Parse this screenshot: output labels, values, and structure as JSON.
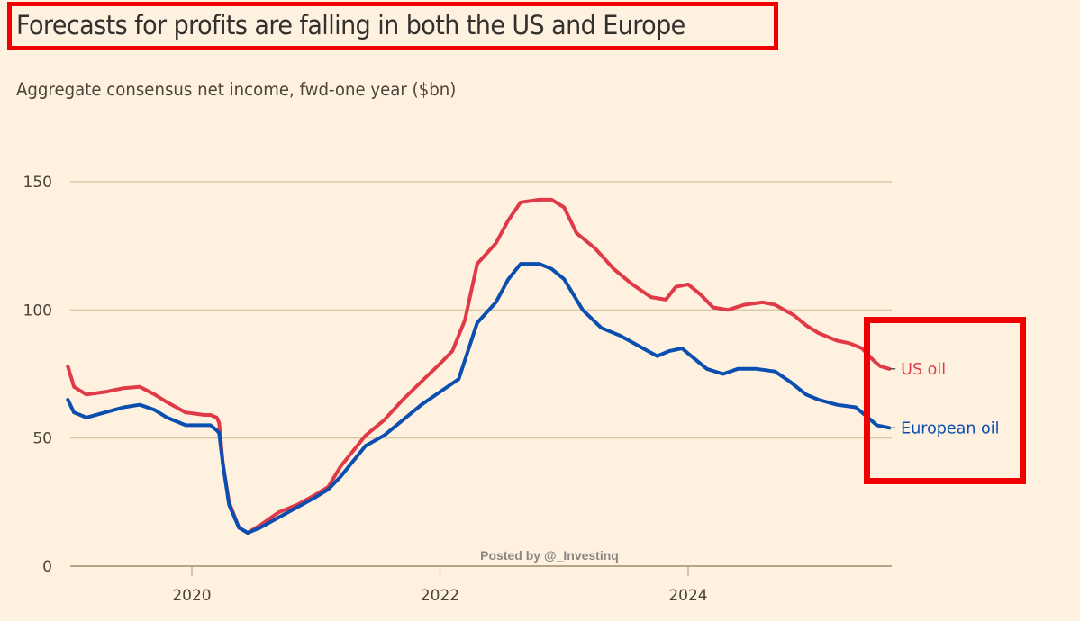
{
  "header": {
    "title": "Forecasts for profits are falling in both the US and Europe",
    "subtitle": "Aggregate consensus net income, fwd-one year ($bn)"
  },
  "watermark": "Posted by @_Investinq",
  "colors": {
    "background": "#fff1df",
    "us_oil": "#e03a48",
    "european_oil": "#0a4fb0",
    "gridline": "#d9c8a8",
    "highlight_box": "#f00000"
  },
  "chart_data": {
    "type": "line",
    "title": "Forecasts for profits are falling in both the US and Europe",
    "subtitle": "Aggregate consensus net income, fwd-one year ($bn)",
    "xlabel": "",
    "ylabel": "",
    "xlim": [
      2019.0,
      2025.65
    ],
    "ylim": [
      0,
      150
    ],
    "x_ticks": [
      2020,
      2022,
      2024
    ],
    "x_tick_labels": [
      "2020",
      "2022",
      "2024"
    ],
    "y_ticks": [
      0,
      50,
      100,
      150
    ],
    "y_tick_labels": [
      "0",
      "50",
      "100",
      "150"
    ],
    "grid": true,
    "legend": "direct labels at right end of lines",
    "series": [
      {
        "name": "US oil",
        "color": "#e03a48",
        "points": [
          [
            2019.0,
            78
          ],
          [
            2019.05,
            70
          ],
          [
            2019.15,
            67
          ],
          [
            2019.3,
            68
          ],
          [
            2019.45,
            69.5
          ],
          [
            2019.58,
            70
          ],
          [
            2019.7,
            67
          ],
          [
            2019.8,
            64
          ],
          [
            2019.95,
            60
          ],
          [
            2020.1,
            59
          ],
          [
            2020.15,
            59
          ],
          [
            2020.2,
            58
          ],
          [
            2020.22,
            56
          ],
          [
            2020.25,
            40
          ],
          [
            2020.3,
            25
          ],
          [
            2020.38,
            15
          ],
          [
            2020.45,
            13
          ],
          [
            2020.55,
            16
          ],
          [
            2020.7,
            21
          ],
          [
            2020.85,
            24
          ],
          [
            2021.0,
            28
          ],
          [
            2021.1,
            31
          ],
          [
            2021.2,
            39
          ],
          [
            2021.3,
            45
          ],
          [
            2021.4,
            51
          ],
          [
            2021.55,
            57
          ],
          [
            2021.7,
            65
          ],
          [
            2021.85,
            72
          ],
          [
            2022.0,
            79
          ],
          [
            2022.1,
            84
          ],
          [
            2022.2,
            96
          ],
          [
            2022.3,
            118
          ],
          [
            2022.45,
            126
          ],
          [
            2022.55,
            135
          ],
          [
            2022.65,
            142
          ],
          [
            2022.8,
            143
          ],
          [
            2022.9,
            143
          ],
          [
            2023.0,
            140
          ],
          [
            2023.1,
            130
          ],
          [
            2023.25,
            124
          ],
          [
            2023.4,
            116
          ],
          [
            2023.55,
            110
          ],
          [
            2023.7,
            105
          ],
          [
            2023.82,
            104
          ],
          [
            2023.9,
            109
          ],
          [
            2024.0,
            110
          ],
          [
            2024.1,
            106
          ],
          [
            2024.2,
            101
          ],
          [
            2024.32,
            100
          ],
          [
            2024.45,
            102
          ],
          [
            2024.6,
            103
          ],
          [
            2024.7,
            102
          ],
          [
            2024.85,
            98
          ],
          [
            2024.95,
            94
          ],
          [
            2025.05,
            91
          ],
          [
            2025.2,
            88
          ],
          [
            2025.3,
            87
          ],
          [
            2025.4,
            85
          ],
          [
            2025.5,
            80
          ],
          [
            2025.55,
            78
          ],
          [
            2025.62,
            77
          ]
        ]
      },
      {
        "name": "European oil",
        "color": "#0a4fb0",
        "points": [
          [
            2019.0,
            65
          ],
          [
            2019.05,
            60
          ],
          [
            2019.15,
            58
          ],
          [
            2019.3,
            60
          ],
          [
            2019.45,
            62
          ],
          [
            2019.58,
            63
          ],
          [
            2019.7,
            61
          ],
          [
            2019.8,
            58
          ],
          [
            2019.95,
            55
          ],
          [
            2020.1,
            55
          ],
          [
            2020.15,
            55
          ],
          [
            2020.2,
            53
          ],
          [
            2020.22,
            52
          ],
          [
            2020.25,
            40
          ],
          [
            2020.3,
            24
          ],
          [
            2020.38,
            15
          ],
          [
            2020.45,
            13
          ],
          [
            2020.55,
            15
          ],
          [
            2020.7,
            19
          ],
          [
            2020.85,
            23
          ],
          [
            2021.0,
            27
          ],
          [
            2021.1,
            30
          ],
          [
            2021.2,
            35
          ],
          [
            2021.3,
            41
          ],
          [
            2021.4,
            47
          ],
          [
            2021.55,
            51
          ],
          [
            2021.7,
            57
          ],
          [
            2021.85,
            63
          ],
          [
            2022.0,
            68
          ],
          [
            2022.15,
            73
          ],
          [
            2022.3,
            95
          ],
          [
            2022.45,
            103
          ],
          [
            2022.55,
            112
          ],
          [
            2022.65,
            118
          ],
          [
            2022.8,
            118
          ],
          [
            2022.9,
            116
          ],
          [
            2023.0,
            112
          ],
          [
            2023.15,
            100
          ],
          [
            2023.3,
            93
          ],
          [
            2023.45,
            90
          ],
          [
            2023.6,
            86
          ],
          [
            2023.75,
            82
          ],
          [
            2023.85,
            84
          ],
          [
            2023.95,
            85
          ],
          [
            2024.05,
            81
          ],
          [
            2024.15,
            77
          ],
          [
            2024.28,
            75
          ],
          [
            2024.4,
            77
          ],
          [
            2024.55,
            77
          ],
          [
            2024.7,
            76
          ],
          [
            2024.82,
            72
          ],
          [
            2024.95,
            67
          ],
          [
            2025.05,
            65
          ],
          [
            2025.2,
            63
          ],
          [
            2025.35,
            62
          ],
          [
            2025.45,
            58
          ],
          [
            2025.52,
            55
          ],
          [
            2025.62,
            54
          ]
        ]
      }
    ]
  }
}
